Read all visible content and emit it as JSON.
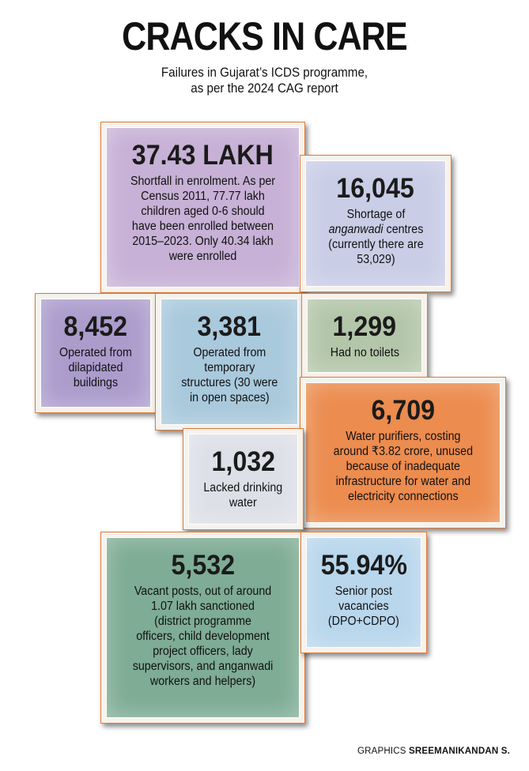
{
  "header": {
    "title": "CRACKS IN CARE",
    "subtitle_line1": "Failures in Gujarat’s ICDS programme,",
    "subtitle_line2": "as per the 2024 CAG report"
  },
  "cards": {
    "enrolment": {
      "value": "37.43 LAKH",
      "line1": "Shortfall in enrolment. As per",
      "line2": "Census 2011, 77.77 lakh",
      "line3": "children aged 0-6 should",
      "line4": "have been enrolled between",
      "line5": "2015–2023. Only 40.34 lakh",
      "line6": "were enrolled",
      "color": "#c7b1d6"
    },
    "centres": {
      "value": "16,045",
      "line1": "Shortage of",
      "line2_italic": "anganwadi",
      "line2_rest": " centres",
      "line3": "(currently there are",
      "line4": "53,029)",
      "color": "#c9cde6"
    },
    "dilapidated": {
      "value": "8,452",
      "line1": "Operated from",
      "line2": "dilapidated",
      "line3": "buildings",
      "color": "#ab9ccc"
    },
    "temporary": {
      "value": "3,381",
      "line1": "Operated from",
      "line2": "temporary",
      "line3": "structures (30 were",
      "line4": "in open spaces)",
      "color": "#a9c9dc"
    },
    "toilets": {
      "value": "1,299",
      "line1": "Had no toilets",
      "color": "#b3c6a9"
    },
    "purifiers": {
      "value": "6,709",
      "line1": "Water purifiers, costing",
      "line2": "around ₹3.82 crore, unused",
      "line3": "because of inadequate",
      "line4": "infrastructure for water and",
      "line5": "electricity connections",
      "color": "#ec8c4f"
    },
    "water": {
      "value": "1,032",
      "line1": "Lacked drinking",
      "line2": "water",
      "color": "#dde0e7"
    },
    "vacant": {
      "value": "5,532",
      "line1": "Vacant posts, out of around",
      "line2": "1.07 lakh sanctioned",
      "line3": "(district programme",
      "line4": "officers, child development",
      "line5": "project officers, lady",
      "line6": "supervisors, and anganwadi",
      "line7": "workers and helpers)",
      "color": "#7eac94"
    },
    "senior": {
      "value": "55.94%",
      "line1": "Senior post",
      "line2": "vacancies",
      "line3": "(DPO+CDPO)",
      "color": "#b8d6ec"
    }
  },
  "credit": {
    "prefix": "GRAPHICS ",
    "author": "SREEMANIKANDAN S."
  }
}
